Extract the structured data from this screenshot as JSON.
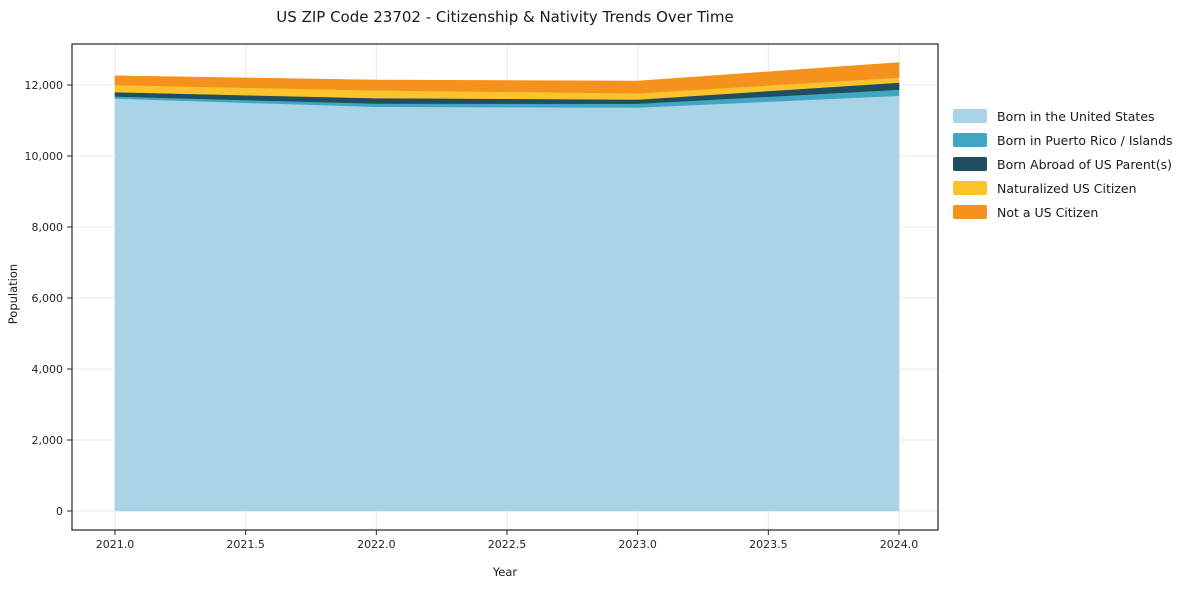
{
  "chart_data": {
    "type": "area",
    "stacked": true,
    "title": "US ZIP Code 23702 - Citizenship & Nativity Trends Over Time",
    "xlabel": "Year",
    "ylabel": "Population",
    "x": [
      2021,
      2022,
      2023,
      2024
    ],
    "series": [
      {
        "name": "Born in the United States",
        "color": "#a8d4e6",
        "values": [
          11620,
          11390,
          11365,
          11700
        ]
      },
      {
        "name": "Born in Puerto Rico / Islands",
        "color": "#41a6c4",
        "values": [
          60,
          90,
          110,
          170
        ]
      },
      {
        "name": "Born Abroad of US Parent(s)",
        "color": "#1f4e5f",
        "values": [
          120,
          150,
          120,
          200
        ]
      },
      {
        "name": "Naturalized US Citizen",
        "color": "#fdc32d",
        "values": [
          200,
          220,
          175,
          140
        ]
      },
      {
        "name": "Not a US Citizen",
        "color": "#f5921e",
        "values": [
          260,
          290,
          340,
          420
        ]
      }
    ],
    "totals": [
      12260,
      12140,
      12110,
      12630
    ],
    "x_ticks": [
      2021.0,
      2021.5,
      2022.0,
      2022.5,
      2023.0,
      2023.5,
      2024.0
    ],
    "x_ticklabels": [
      "2021.0",
      "2021.5",
      "2022.0",
      "2022.5",
      "2023.0",
      "2023.5",
      "2024.0"
    ],
    "y_ticks": [
      0,
      2000,
      4000,
      6000,
      8000,
      10000,
      12000
    ],
    "y_ticklabels": [
      "0",
      "2,000",
      "4,000",
      "6,000",
      "8,000",
      "10,000",
      "12,000"
    ],
    "ylim": [
      0,
      12000
    ],
    "grid": true,
    "legend_position": "right-outside",
    "colors": {
      "grid": "#e9e9e9",
      "spine": "#262626",
      "tick_label": "#262626",
      "background": "#ffffff"
    }
  }
}
